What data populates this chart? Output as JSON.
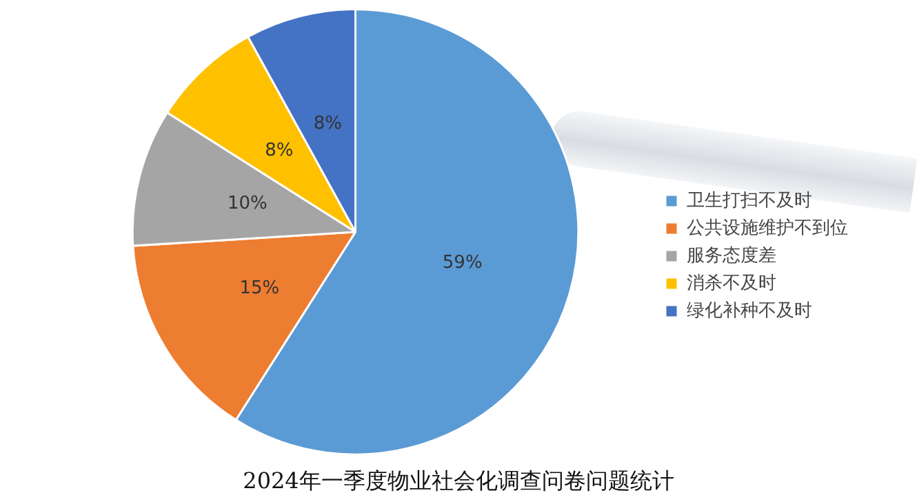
{
  "chart_data": {
    "type": "pie",
    "title": "2024年一季度物业社会化调查问卷问题统计",
    "categories": [
      "卫生打扫不及时",
      "公共设施维护不到位",
      "服务态度差",
      "消杀不及时",
      "绿化补种不及时"
    ],
    "values": [
      59,
      15,
      10,
      8,
      8
    ],
    "colors": [
      "#5b9bd5",
      "#ed7d31",
      "#a5a5a5",
      "#ffc000",
      "#4472c4"
    ],
    "value_labels": [
      "59%",
      "15%",
      "10%",
      "8%",
      "8%"
    ],
    "legend": "right"
  }
}
